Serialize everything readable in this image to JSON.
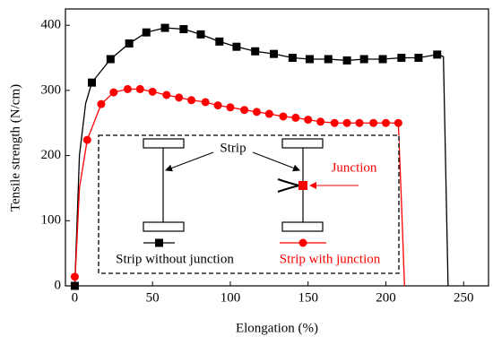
{
  "chart_data": {
    "type": "line",
    "x_label": "Elongation (%)",
    "y_label": "Tensile strength (N/cm)",
    "xlim": [
      -6,
      266
    ],
    "ylim": [
      0,
      425
    ],
    "xticks": [
      0,
      50,
      100,
      150,
      200,
      250
    ],
    "yticks": [
      0,
      100,
      200,
      300,
      400
    ],
    "series": [
      {
        "name": "Strip without junction",
        "color": "#000000",
        "marker": "square",
        "x": [
          0,
          11,
          23,
          35,
          46,
          58,
          70,
          81,
          93,
          104,
          116,
          128,
          140,
          151,
          163,
          175,
          186,
          198,
          210,
          221,
          233
        ],
        "values": [
          0,
          312,
          348,
          372,
          389,
          396,
          394,
          386,
          375,
          367,
          360,
          356,
          350,
          348,
          348,
          346,
          348,
          348,
          350,
          350,
          355
        ],
        "curve_x": [
          0,
          3,
          7,
          11,
          23,
          35,
          46,
          58,
          70,
          81,
          93,
          104,
          116,
          128,
          140,
          151,
          163,
          175,
          186,
          198,
          210,
          221,
          233,
          237,
          240
        ],
        "curve_values": [
          0,
          200,
          280,
          312,
          348,
          372,
          389,
          396,
          394,
          386,
          375,
          367,
          360,
          356,
          350,
          348,
          348,
          346,
          348,
          348,
          350,
          350,
          355,
          352,
          0
        ]
      },
      {
        "name": "Strip with junction",
        "color": "#ff0000",
        "marker": "circle",
        "x": [
          0,
          8,
          17,
          25,
          34,
          42,
          50,
          59,
          67,
          75,
          84,
          92,
          100,
          109,
          117,
          125,
          134,
          142,
          150,
          158,
          167,
          175,
          183,
          192,
          200,
          208
        ],
        "values": [
          14,
          224,
          279,
          297,
          302,
          302,
          298,
          293,
          289,
          285,
          282,
          277,
          274,
          270,
          267,
          264,
          260,
          258,
          255,
          252,
          250,
          250,
          250,
          250,
          250,
          250
        ],
        "curve_x": [
          0,
          3,
          8,
          17,
          25,
          34,
          42,
          50,
          59,
          67,
          75,
          84,
          92,
          100,
          109,
          117,
          125,
          134,
          142,
          150,
          158,
          167,
          175,
          183,
          192,
          200,
          208,
          210,
          212
        ],
        "curve_values": [
          0,
          150,
          224,
          279,
          297,
          302,
          302,
          298,
          293,
          289,
          285,
          282,
          277,
          274,
          270,
          267,
          264,
          260,
          258,
          255,
          252,
          250,
          250,
          250,
          250,
          250,
          250,
          130,
          0
        ]
      }
    ],
    "annotations": [
      "Strip",
      "Junction"
    ]
  }
}
